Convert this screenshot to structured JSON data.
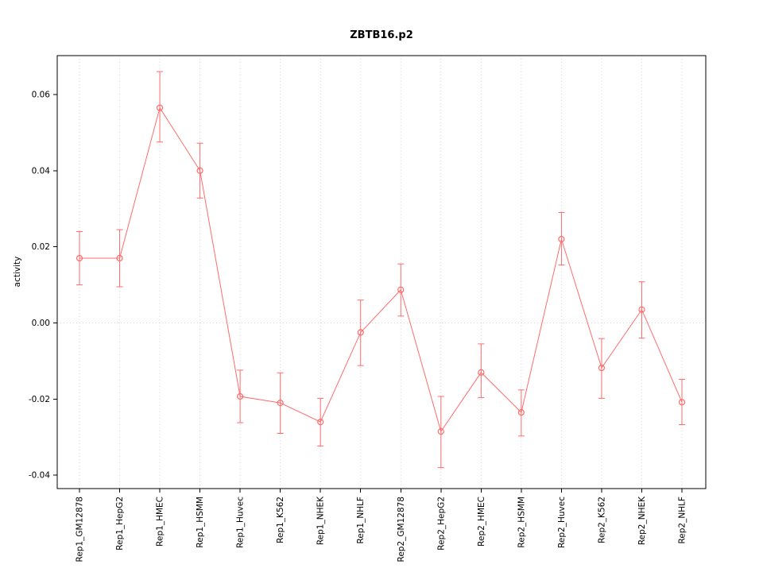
{
  "page": {
    "background": "#ffffff"
  },
  "chart_data": {
    "type": "line",
    "title": "ZBTB16.p2",
    "xlabel": "",
    "ylabel": "activity",
    "categories": [
      "Rep1_GM12878",
      "Rep1_HepG2",
      "Rep1_HMEC",
      "Rep1_HSMM",
      "Rep1_Huvec",
      "Rep1_K562",
      "Rep1_NHEK",
      "Rep1_NHLF",
      "Rep2_GM12878",
      "Rep2_HepG2",
      "Rep2_HMEC",
      "Rep2_HSMM",
      "Rep2_Huvec",
      "Rep2_K562",
      "Rep2_NHEK",
      "Rep2_NHLF"
    ],
    "series": [
      {
        "name": "activity",
        "values": [
          0.017,
          0.017,
          0.0565,
          0.04,
          -0.0193,
          -0.021,
          -0.026,
          -0.0025,
          0.0087,
          -0.0285,
          -0.013,
          -0.0235,
          0.022,
          -0.0118,
          0.0035,
          -0.0208
        ],
        "error_lower": [
          0.01,
          0.0095,
          0.0475,
          0.0328,
          -0.0262,
          -0.029,
          -0.0323,
          -0.0112,
          0.0018,
          -0.038,
          -0.0196,
          -0.0297,
          0.0152,
          -0.0198,
          -0.004,
          -0.0267
        ],
        "error_upper": [
          0.024,
          0.0245,
          0.066,
          0.0472,
          -0.0124,
          -0.0131,
          -0.0198,
          0.006,
          0.0155,
          -0.0193,
          -0.0055,
          -0.0176,
          0.029,
          -0.0041,
          0.0108,
          -0.0148
        ]
      }
    ],
    "yticks": [
      {
        "value": -0.04,
        "label": "-0.04"
      },
      {
        "value": -0.02,
        "label": "-0.02"
      },
      {
        "value": 0.0,
        "label": "0.00"
      },
      {
        "value": 0.02,
        "label": "0.02"
      },
      {
        "value": 0.04,
        "label": "0.04"
      },
      {
        "value": 0.06,
        "label": "0.06"
      }
    ],
    "ylim": [
      -0.0435,
      0.0702
    ],
    "marker": "open-circle",
    "error_bars": true,
    "grid": {
      "vertical": "dotted line at each category",
      "horizontal": "dotted line at zero"
    },
    "legend": "none",
    "colors": {
      "series": "#ff6b6b",
      "grid": "#d6d6d6",
      "axis": "#000000",
      "text": "#000000",
      "background": "#ffffff"
    }
  }
}
